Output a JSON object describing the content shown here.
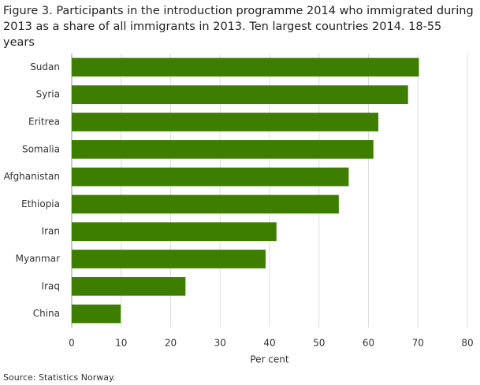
{
  "chart_data": {
    "type": "bar",
    "orientation": "horizontal",
    "title": "Figure 3. Participants in the introduction programme 2014 who immigrated during 2013 as a share of all immigrants in 2013. Ten largest countries 2014. 18-55 years",
    "categories": [
      "Sudan",
      "Syria",
      "Eritrea",
      "Somalia",
      "Afghanistan",
      "Ethiopia",
      "Iran",
      "Myanmar",
      "Iraq",
      "China"
    ],
    "values": [
      70.2,
      68,
      62,
      61,
      56,
      54,
      41.4,
      39.2,
      23,
      9.9
    ],
    "color": "#3d7e00",
    "xlim": [
      0,
      80
    ],
    "xticks": [
      0,
      10,
      20,
      30,
      40,
      50,
      60,
      70,
      80
    ],
    "grid": true,
    "x_label": "Per cent",
    "source": "Source: Statistics Norway."
  }
}
